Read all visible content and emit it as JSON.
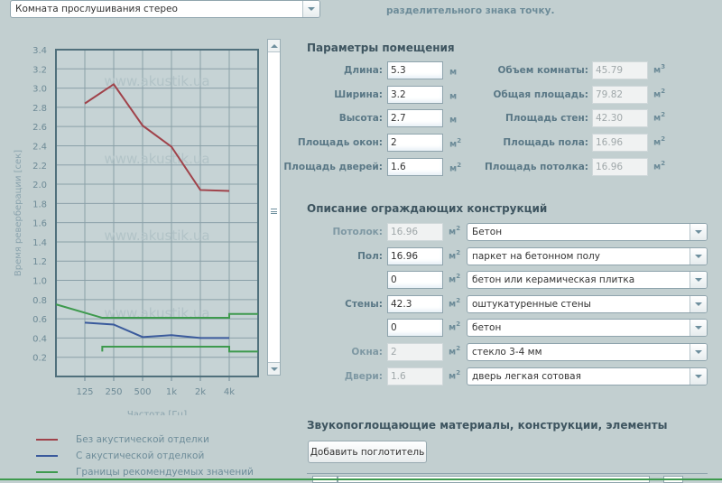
{
  "preset_select": {
    "value": "Комната прослушивания стерео"
  },
  "note_text": "разделительного знака точку.",
  "room": {
    "title": "Параметры помещения",
    "inputs": [
      {
        "label": "Длина:",
        "value": "5.3",
        "unit": "м",
        "sup": ""
      },
      {
        "label": "Ширина:",
        "value": "3.2",
        "unit": "м",
        "sup": ""
      },
      {
        "label": "Высота:",
        "value": "2.7",
        "unit": "м",
        "sup": ""
      },
      {
        "label": "Площадь окон:",
        "value": "2",
        "unit": "м",
        "sup": "2"
      },
      {
        "label": "Площадь дверей:",
        "value": "1.6",
        "unit": "м",
        "sup": "2"
      }
    ],
    "computed": [
      {
        "label": "Объем комнаты:",
        "value": "45.79",
        "unit": "м",
        "sup": "3"
      },
      {
        "label": "Общая площадь:",
        "value": "79.82",
        "unit": "м",
        "sup": "2"
      },
      {
        "label": "Площадь стен:",
        "value": "42.30",
        "unit": "м",
        "sup": "2"
      },
      {
        "label": "Площадь пола:",
        "value": "16.96",
        "unit": "м",
        "sup": "2"
      },
      {
        "label": "Площадь потолка:",
        "value": "16.96",
        "unit": "м",
        "sup": "2"
      }
    ]
  },
  "constructions": {
    "title": "Описание ограждающих конструкций",
    "rows": [
      {
        "label": "Потолок:",
        "value": "16.96",
        "disabled": true,
        "unit": "м",
        "sup": "2",
        "material": "Бетон"
      },
      {
        "label": "Пол:",
        "value": "16.96",
        "disabled": false,
        "unit": "м",
        "sup": "2",
        "material": "паркет на бетонном полу"
      },
      {
        "label": "",
        "value": "0",
        "disabled": false,
        "unit": "м",
        "sup": "2",
        "material": "бетон или керамическая плитка"
      },
      {
        "label": "Стены:",
        "value": "42.3",
        "disabled": false,
        "unit": "м",
        "sup": "2",
        "material": "оштукатуренные стены"
      },
      {
        "label": "",
        "value": "0",
        "disabled": false,
        "unit": "м",
        "sup": "2",
        "material": "бетон"
      },
      {
        "label": "Окна:",
        "value": "2",
        "disabled": true,
        "unit": "м",
        "sup": "2",
        "material": "стекло 3-4 мм"
      },
      {
        "label": "Двери:",
        "value": "1.6",
        "disabled": true,
        "unit": "м",
        "sup": "2",
        "material": "дверь легкая сотовая"
      }
    ]
  },
  "absorbers": {
    "title": "Звукопоглощающие материалы, конструкции, элементы",
    "add_button": "Добавить поглотитель"
  },
  "chart_data": {
    "type": "line",
    "xlabel": "Частота [Гц]",
    "ylabel": "Время реверберации [сек]",
    "x_scale": "log2",
    "xlim": [
      62.5,
      8000
    ],
    "ylim": [
      0,
      3.4
    ],
    "grid": true,
    "watermark": "www.akustik.ua",
    "x_ticks": [
      {
        "f": 125,
        "label": "125"
      },
      {
        "f": 250,
        "label": "250"
      },
      {
        "f": 500,
        "label": "500"
      },
      {
        "f": 1000,
        "label": "1k"
      },
      {
        "f": 2000,
        "label": "2k"
      },
      {
        "f": 4000,
        "label": "4k"
      }
    ],
    "y_ticks": [
      "0.2",
      "0.4",
      "0.6",
      "0.8",
      "1.0",
      "1.2",
      "1.4",
      "1.6",
      "1.8",
      "2.0",
      "2.2",
      "2.4",
      "2.6",
      "2.8",
      "3.0",
      "3.2",
      "3.4"
    ],
    "series": [
      {
        "name": "Без акустической отделки",
        "color": "#a0424a",
        "points": [
          [
            125,
            2.84
          ],
          [
            250,
            3.04
          ],
          [
            500,
            2.61
          ],
          [
            1000,
            2.39
          ],
          [
            2000,
            1.94
          ],
          [
            4000,
            1.93
          ]
        ]
      },
      {
        "name": "С акустической отделкой",
        "color": "#3a5a9c",
        "points": [
          [
            125,
            0.56
          ],
          [
            250,
            0.54
          ],
          [
            500,
            0.41
          ],
          [
            1000,
            0.43
          ],
          [
            2000,
            0.4
          ],
          [
            4000,
            0.4
          ]
        ]
      },
      {
        "name": "Границы рекомендуемых значений",
        "color": "#3e9a4e",
        "points": [
          [
            62.5,
            0.75
          ],
          [
            190,
            0.61
          ],
          [
            4000,
            0.61
          ],
          [
            4000,
            0.65
          ],
          [
            8000,
            0.65
          ]
        ]
      },
      {
        "color": "#3e9a4e",
        "points": [
          [
            190,
            0.26
          ],
          [
            190,
            0.31
          ],
          [
            4000,
            0.31
          ],
          [
            4000,
            0.26
          ],
          [
            8000,
            0.26
          ]
        ]
      }
    ]
  }
}
